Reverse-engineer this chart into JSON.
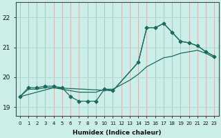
{
  "xlabel": "Humidex (Indice chaleur)",
  "bg_color": "#cceee8",
  "line_color": "#1a6b60",
  "grid_color_v": "#d4a0a0",
  "grid_color_h": "#b0d8d4",
  "ylim": [
    18.7,
    22.5
  ],
  "xlim": [
    -0.5,
    23.5
  ],
  "yticks": [
    19,
    20,
    21,
    22
  ],
  "xticks": [
    0,
    1,
    2,
    3,
    4,
    5,
    6,
    7,
    8,
    9,
    10,
    11,
    12,
    13,
    14,
    15,
    16,
    17,
    18,
    19,
    20,
    21,
    22,
    23
  ],
  "line1_x": [
    0,
    1,
    2,
    3,
    4,
    5,
    6,
    7,
    8,
    9,
    10,
    11,
    14,
    15,
    16,
    17,
    18,
    19,
    20,
    21,
    22,
    23
  ],
  "line1_y": [
    19.35,
    19.65,
    19.65,
    19.7,
    19.7,
    19.65,
    19.35,
    19.2,
    19.2,
    19.2,
    19.6,
    19.55,
    20.5,
    21.65,
    21.65,
    21.8,
    21.5,
    21.2,
    21.15,
    21.05,
    20.85,
    20.7
  ],
  "line2_x": [
    0,
    1,
    2,
    3,
    4,
    5,
    6,
    7,
    8,
    9,
    10,
    11,
    12,
    13,
    14,
    15,
    16,
    17,
    18,
    19,
    20,
    21,
    22,
    23
  ],
  "line2_y": [
    19.35,
    19.6,
    19.6,
    19.65,
    19.65,
    19.6,
    19.55,
    19.5,
    19.5,
    19.5,
    19.6,
    19.6,
    19.75,
    19.9,
    20.1,
    20.35,
    20.5,
    20.65,
    20.7,
    20.8,
    20.85,
    20.9,
    20.8,
    20.65
  ],
  "line3_x": [
    0,
    4,
    11,
    14,
    15,
    16,
    17,
    19,
    20,
    21,
    22,
    23
  ],
  "line3_y": [
    19.35,
    19.65,
    19.55,
    20.5,
    21.65,
    21.65,
    21.8,
    21.2,
    21.15,
    21.05,
    20.85,
    20.7
  ],
  "marker_size": 2.5,
  "line_width": 0.9
}
